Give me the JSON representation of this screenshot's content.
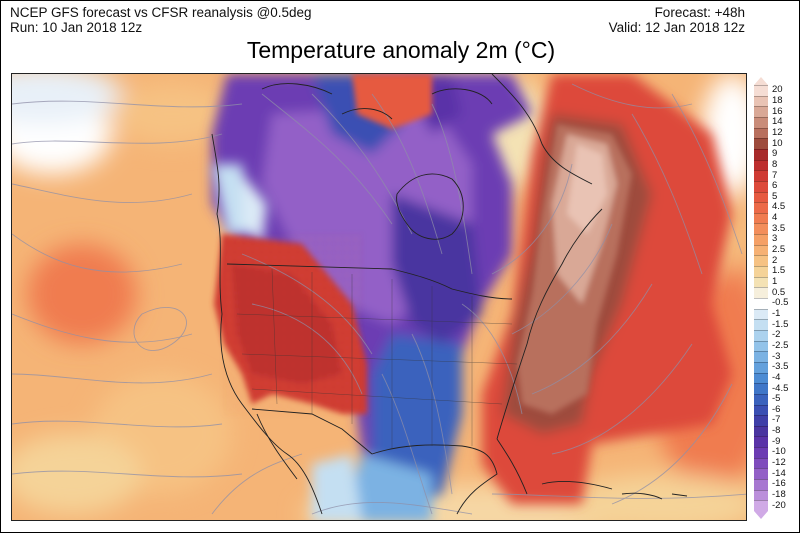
{
  "header": {
    "model_line": "NCEP GFS forecast vs CFSR reanalysis @0.5deg",
    "run_line": "Run: 10 Jan 2018 12z",
    "forecast_line": "Forecast: +48h",
    "valid_line": "Valid: 12 Jan 2018 12z"
  },
  "title": "Temperature anomaly 2m (°C)",
  "map": {
    "region": "North America",
    "overlays": [
      "temperature-anomaly-shading",
      "wind-streamlines",
      "coastlines",
      "country-borders",
      "state-borders"
    ],
    "anomalies": {
      "western-us": "warm",
      "central-canada": "cold",
      "central-us-plains": "cold",
      "eastern-us": "very-warm",
      "western-atlantic": "warm",
      "eastern-pacific": "warm"
    }
  },
  "legend": {
    "labels": [
      "20",
      "18",
      "16",
      "14",
      "12",
      "10",
      "9",
      "8",
      "7",
      "6",
      "5",
      "4.5",
      "4",
      "3.5",
      "3",
      "2.5",
      "2",
      "1.5",
      "1",
      "0.5",
      "-0.5",
      "-1",
      "-1.5",
      "-2",
      "-2.5",
      "-3",
      "-3.5",
      "-4",
      "-4.5",
      "-5",
      "-6",
      "-7",
      "-8",
      "-9",
      "-10",
      "-12",
      "-14",
      "-16",
      "-18",
      "-20"
    ],
    "colors": [
      "#f5ddd4",
      "#e9c3b4",
      "#d9a896",
      "#c98c79",
      "#b86f5d",
      "#9e4b3c",
      "#a82a2a",
      "#bd2e2e",
      "#cf3a33",
      "#dd4a3a",
      "#e65a40",
      "#ec6a48",
      "#f07c50",
      "#f38e5b",
      "#f5a066",
      "#f6b174",
      "#f6c283",
      "#f5d398",
      "#f4e2b4",
      "#f6efdc",
      "#ffffff",
      "#dbeaf6",
      "#c4dff2",
      "#acd2ee",
      "#93c3e9",
      "#7bb2e3",
      "#63a0dc",
      "#4c8bd3",
      "#3f76c8",
      "#3a62bd",
      "#3a4fb3",
      "#3f3fa8",
      "#4a35a0",
      "#5a33a8",
      "#6c3cb3",
      "#7f4cbd",
      "#9360c7",
      "#a777d1",
      "#bb8fdb",
      "#d0aae6"
    ]
  }
}
